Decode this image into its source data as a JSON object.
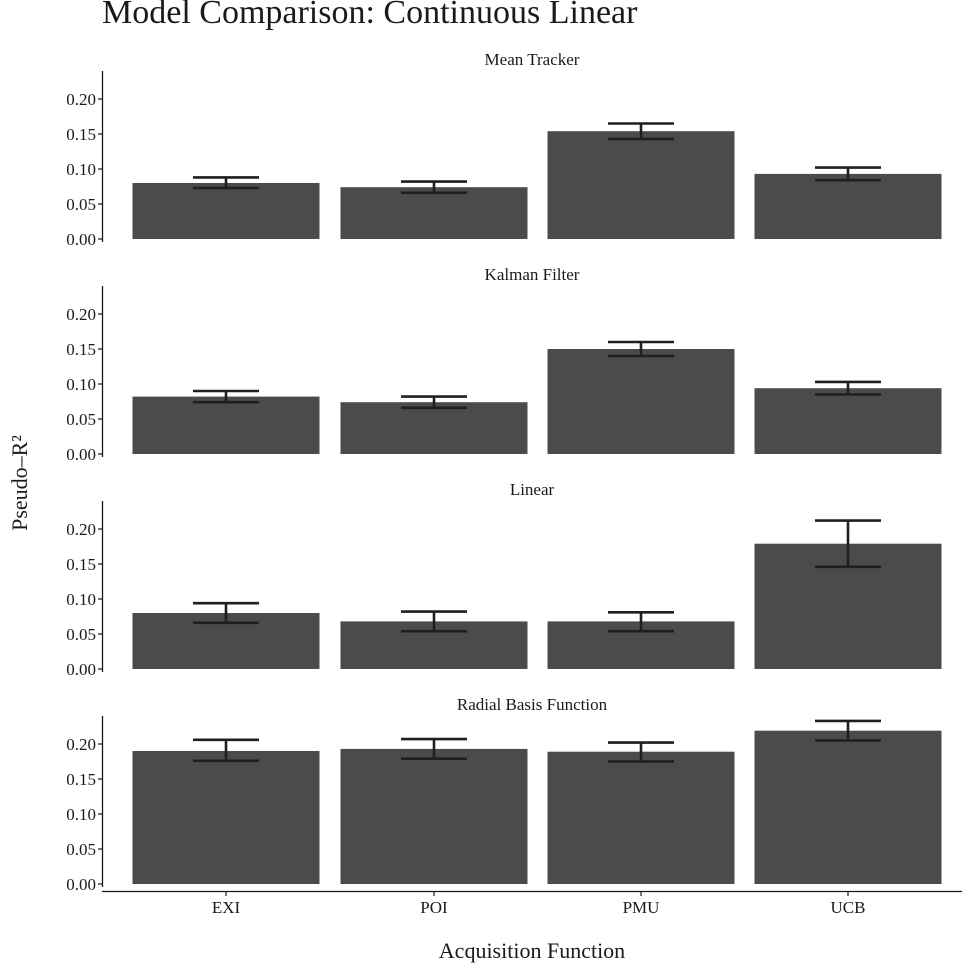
{
  "chart_data": {
    "type": "bar",
    "title": "Model Comparison: Continuous Linear",
    "xlabel": "Acquisition Function",
    "ylabel": "Pseudo–R²",
    "ylim": [
      0,
      0.24
    ],
    "yticks": [
      "0.00",
      "0.05",
      "0.10",
      "0.15",
      "0.20"
    ],
    "grid": false,
    "categories": [
      "EXI",
      "POI",
      "PMU",
      "UCB"
    ],
    "bar_color": "#4a4b4d",
    "errorbar_color": "#1f1f1f",
    "panels": [
      {
        "name": "Mean Tracker",
        "values": [
          0.08,
          0.074,
          0.154,
          0.093
        ],
        "error_low": [
          0.073,
          0.066,
          0.143,
          0.084
        ],
        "error_high": [
          0.088,
          0.082,
          0.165,
          0.102
        ]
      },
      {
        "name": "Kalman Filter",
        "values": [
          0.082,
          0.074,
          0.15,
          0.094
        ],
        "error_low": [
          0.074,
          0.066,
          0.14,
          0.085
        ],
        "error_high": [
          0.09,
          0.082,
          0.16,
          0.103
        ]
      },
      {
        "name": "Linear",
        "values": [
          0.08,
          0.068,
          0.068,
          0.179
        ],
        "error_low": [
          0.066,
          0.054,
          0.054,
          0.146
        ],
        "error_high": [
          0.094,
          0.082,
          0.081,
          0.212
        ]
      },
      {
        "name": "Radial Basis Function",
        "values": [
          0.19,
          0.193,
          0.189,
          0.219
        ],
        "error_low": [
          0.176,
          0.179,
          0.175,
          0.205
        ],
        "error_high": [
          0.206,
          0.207,
          0.202,
          0.233
        ]
      }
    ]
  }
}
